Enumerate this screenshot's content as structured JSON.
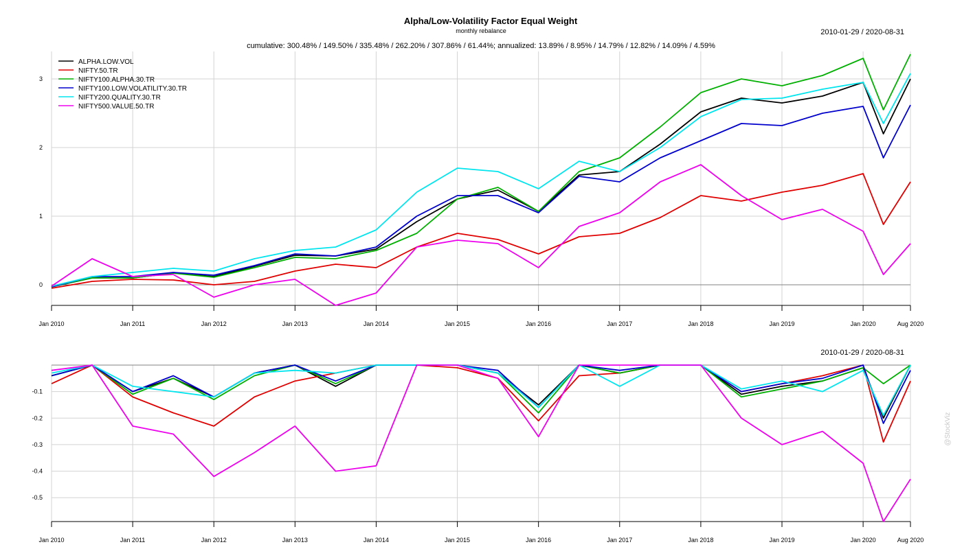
{
  "header": {
    "title": "Alpha/Low-Volatility Factor Equal Weight",
    "subtitle": "monthly rebalance",
    "stats": "cumulative: 300.48% / 149.50% / 335.48% / 262.20% / 307.86% / 61.44%; annualized: 13.89% / 8.95% / 14.79% / 12.82% / 14.09% / 4.59%",
    "date_range_top": "2010-01-29 / 2020-08-31",
    "date_range_bottom": "2010-01-29 / 2020-08-31",
    "watermark": "@StockViz"
  },
  "chart_data": [
    {
      "type": "line",
      "title": "Alpha/Low-Volatility Factor Equal Weight",
      "xlabel": "",
      "ylabel": "",
      "ylim": [
        -0.3,
        3.4
      ],
      "yticks": [
        "3",
        "2",
        "1",
        "0"
      ],
      "ytick_values": [
        3,
        2,
        1,
        0
      ],
      "xticks": [
        "Jan 2010",
        "Jan 2011",
        "Jan 2012",
        "Jan 2013",
        "Jan 2014",
        "Jan 2015",
        "Jan 2016",
        "Jan 2017",
        "Jan 2018",
        "Jan 2019",
        "Jan 2020",
        "Aug 2020"
      ],
      "grid": true,
      "legend": "top-left",
      "x": [
        "2010-01",
        "2010-07",
        "2011-01",
        "2011-07",
        "2012-01",
        "2012-07",
        "2013-01",
        "2013-07",
        "2014-01",
        "2014-07",
        "2015-01",
        "2015-07",
        "2016-01",
        "2016-07",
        "2017-01",
        "2017-07",
        "2018-01",
        "2018-07",
        "2019-01",
        "2019-07",
        "2020-01",
        "2020-04",
        "2020-08"
      ],
      "series": [
        {
          "name": "ALPHA.LOW.VOL",
          "color": "#000000",
          "values": [
            -0.03,
            0.1,
            0.1,
            0.17,
            0.12,
            0.27,
            0.43,
            0.42,
            0.52,
            0.92,
            1.25,
            1.38,
            1.07,
            1.6,
            1.65,
            2.05,
            2.52,
            2.72,
            2.65,
            2.75,
            2.95,
            2.2,
            3.0
          ]
        },
        {
          "name": "NIFTY.50.TR",
          "color": "#e00000",
          "values": [
            -0.05,
            0.05,
            0.08,
            0.07,
            0.0,
            0.05,
            0.2,
            0.3,
            0.25,
            0.55,
            0.75,
            0.66,
            0.45,
            0.7,
            0.75,
            0.98,
            1.3,
            1.22,
            1.35,
            1.45,
            1.62,
            0.88,
            1.5
          ]
        },
        {
          "name": "NIFTY100.ALPHA.30.TR",
          "color": "#00b000",
          "values": [
            -0.03,
            0.1,
            0.1,
            0.17,
            0.11,
            0.25,
            0.4,
            0.38,
            0.5,
            0.75,
            1.25,
            1.42,
            1.07,
            1.65,
            1.85,
            2.3,
            2.8,
            3.0,
            2.9,
            3.05,
            3.3,
            2.55,
            3.36
          ]
        },
        {
          "name": "NIFTY100.LOW.VOLATILITY.30.TR",
          "color": "#0000cc",
          "values": [
            -0.03,
            0.12,
            0.12,
            0.18,
            0.14,
            0.28,
            0.45,
            0.42,
            0.55,
            1.0,
            1.3,
            1.3,
            1.05,
            1.58,
            1.5,
            1.85,
            2.1,
            2.35,
            2.32,
            2.5,
            2.6,
            1.85,
            2.62
          ]
        },
        {
          "name": "NIFTY200.QUALITY.30.TR",
          "color": "#00e5ee",
          "values": [
            -0.02,
            0.12,
            0.18,
            0.24,
            0.2,
            0.38,
            0.5,
            0.55,
            0.8,
            1.35,
            1.7,
            1.65,
            1.4,
            1.8,
            1.65,
            2.0,
            2.45,
            2.7,
            2.72,
            2.85,
            2.95,
            2.35,
            3.08
          ]
        },
        {
          "name": "NIFTY500.VALUE.50.TR",
          "color": "#ee00ee",
          "values": [
            -0.02,
            0.38,
            0.12,
            0.15,
            -0.18,
            0.0,
            0.08,
            -0.3,
            -0.12,
            0.55,
            0.65,
            0.6,
            0.25,
            0.85,
            1.05,
            1.5,
            1.75,
            1.3,
            0.95,
            1.1,
            0.78,
            0.15,
            0.6
          ]
        }
      ]
    },
    {
      "type": "line",
      "title": "",
      "xlabel": "",
      "ylabel": "",
      "ylim": [
        -0.59,
        0.0
      ],
      "yticks": [
        "-0.1",
        "-0.2",
        "-0.3",
        "-0.4",
        "-0.5"
      ],
      "ytick_values": [
        -0.1,
        -0.2,
        -0.3,
        -0.4,
        -0.5
      ],
      "xticks": [
        "Jan 2010",
        "Jan 2011",
        "Jan 2012",
        "Jan 2013",
        "Jan 2014",
        "Jan 2015",
        "Jan 2016",
        "Jan 2017",
        "Jan 2018",
        "Jan 2019",
        "Jan 2020",
        "Aug 2020"
      ],
      "grid": true,
      "x": [
        "2010-01",
        "2010-07",
        "2011-01",
        "2011-07",
        "2012-01",
        "2012-07",
        "2013-01",
        "2013-07",
        "2014-01",
        "2014-07",
        "2015-01",
        "2015-07",
        "2016-01",
        "2016-07",
        "2017-01",
        "2017-07",
        "2018-01",
        "2018-07",
        "2019-01",
        "2019-07",
        "2020-01",
        "2020-04",
        "2020-08"
      ],
      "series": [
        {
          "name": "ALPHA.LOW.VOL",
          "color": "#000000",
          "values": [
            -0.04,
            0.0,
            -0.1,
            -0.05,
            -0.12,
            -0.03,
            0.0,
            -0.08,
            0.0,
            0.0,
            0.0,
            -0.03,
            -0.15,
            0.0,
            -0.03,
            0.0,
            0.0,
            -0.11,
            -0.08,
            -0.06,
            -0.01,
            -0.2,
            0.0
          ]
        },
        {
          "name": "NIFTY.50.TR",
          "color": "#e00000",
          "values": [
            -0.07,
            0.0,
            -0.12,
            -0.18,
            -0.23,
            -0.12,
            -0.06,
            -0.03,
            0.0,
            0.0,
            -0.01,
            -0.05,
            -0.21,
            -0.04,
            -0.03,
            0.0,
            0.0,
            -0.1,
            -0.07,
            -0.04,
            0.0,
            -0.29,
            -0.06
          ]
        },
        {
          "name": "NIFTY100.ALPHA.30.TR",
          "color": "#00b000",
          "values": [
            -0.04,
            0.0,
            -0.11,
            -0.05,
            -0.13,
            -0.04,
            0.0,
            -0.07,
            0.0,
            0.0,
            0.0,
            -0.03,
            -0.18,
            0.0,
            -0.03,
            0.0,
            0.0,
            -0.12,
            -0.09,
            -0.06,
            -0.01,
            -0.07,
            0.0
          ]
        },
        {
          "name": "NIFTY100.LOW.VOLATILITY.30.TR",
          "color": "#0000cc",
          "values": [
            -0.04,
            0.0,
            -0.1,
            -0.04,
            -0.12,
            -0.03,
            0.0,
            -0.06,
            0.0,
            0.0,
            0.0,
            -0.02,
            -0.16,
            0.0,
            -0.02,
            0.0,
            0.0,
            -0.1,
            -0.07,
            -0.05,
            0.0,
            -0.22,
            -0.02
          ]
        },
        {
          "name": "NIFTY200.QUALITY.30.TR",
          "color": "#00e5ee",
          "values": [
            -0.03,
            0.0,
            -0.08,
            -0.1,
            -0.12,
            -0.03,
            -0.02,
            -0.03,
            0.0,
            0.0,
            0.0,
            -0.03,
            -0.16,
            0.0,
            -0.08,
            0.0,
            0.0,
            -0.09,
            -0.06,
            -0.1,
            -0.02,
            -0.19,
            0.0
          ]
        },
        {
          "name": "NIFTY500.VALUE.50.TR",
          "color": "#ee00ee",
          "values": [
            -0.02,
            0.0,
            -0.23,
            -0.26,
            -0.42,
            -0.33,
            -0.23,
            -0.4,
            -0.38,
            0.0,
            0.0,
            -0.05,
            -0.27,
            0.0,
            0.0,
            0.0,
            0.0,
            -0.2,
            -0.3,
            -0.25,
            -0.37,
            -0.59,
            -0.43
          ]
        }
      ]
    }
  ]
}
